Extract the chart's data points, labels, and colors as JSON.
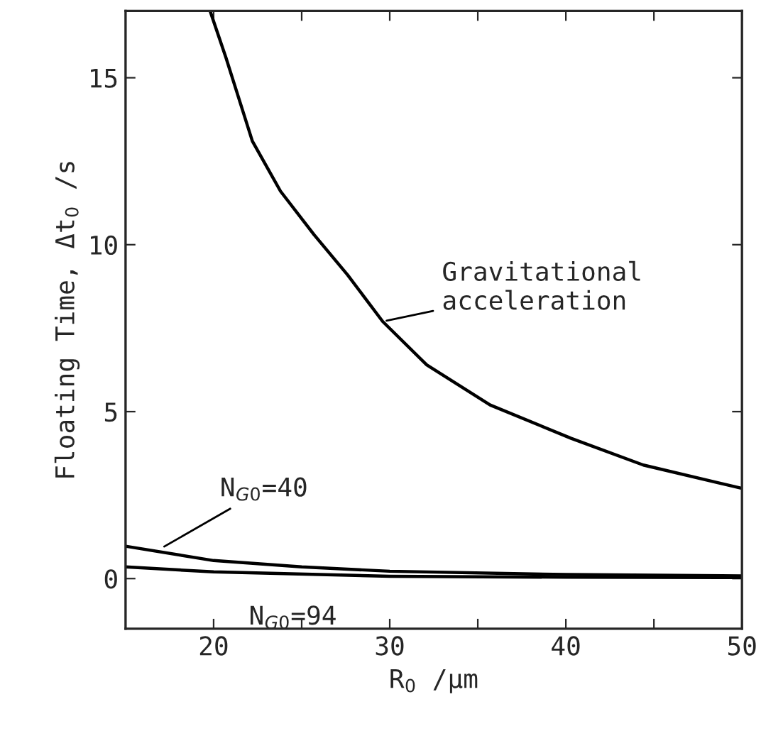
{
  "chart_data": {
    "type": "line",
    "xlabel": "R$_{0}$ /μm",
    "ylabel": "Floating Time, Δt$_{0}$ /s",
    "xlim": [
      15,
      50
    ],
    "xticks": [
      {
        "value": 20,
        "label": "20"
      },
      {
        "value": 25,
        "label": null
      },
      {
        "value": 30,
        "label": "30"
      },
      {
        "value": 35,
        "label": null
      },
      {
        "value": 40,
        "label": "40"
      },
      {
        "value": 45,
        "label": null
      },
      {
        "value": 50,
        "label": "50"
      }
    ],
    "ylim": [
      -1.5,
      17
    ],
    "yticks": [
      0,
      5,
      10,
      15
    ],
    "grid": false,
    "legend": false,
    "marker": "none",
    "line_style": "solid",
    "series": [
      {
        "color": "#000000",
        "x": [
          19.8,
          20.7,
          22.2,
          23.8,
          25.7,
          27.6,
          29.6,
          32.1,
          35.7,
          40.3,
          44.4,
          50
        ],
        "values": [
          17.0,
          15.6,
          13.1,
          11.6,
          10.3,
          9.1,
          7.7,
          6.4,
          5.2,
          4.2,
          3.4,
          2.7
        ]
      },
      {
        "color": "#000000",
        "x": [
          15,
          20,
          25,
          30,
          40,
          50
        ],
        "values": [
          0.97,
          0.54,
          0.35,
          0.22,
          0.12,
          0.08
        ]
      },
      {
        "color": "#000000",
        "x": [
          15,
          20,
          30,
          40,
          50
        ],
        "values": [
          0.35,
          0.2,
          0.07,
          0.04,
          0.03
        ]
      }
    ],
    "annotations": [
      {
        "text": "Gravitational\nacceleration",
        "x": 29.6,
        "y": 7.7
      },
      {
        "text": "N$_{G0}$=40",
        "x": 17,
        "y": 0.9
      },
      {
        "text": "N$_{G0}$=94",
        "x": 22,
        "y": 0.15
      }
    ]
  }
}
